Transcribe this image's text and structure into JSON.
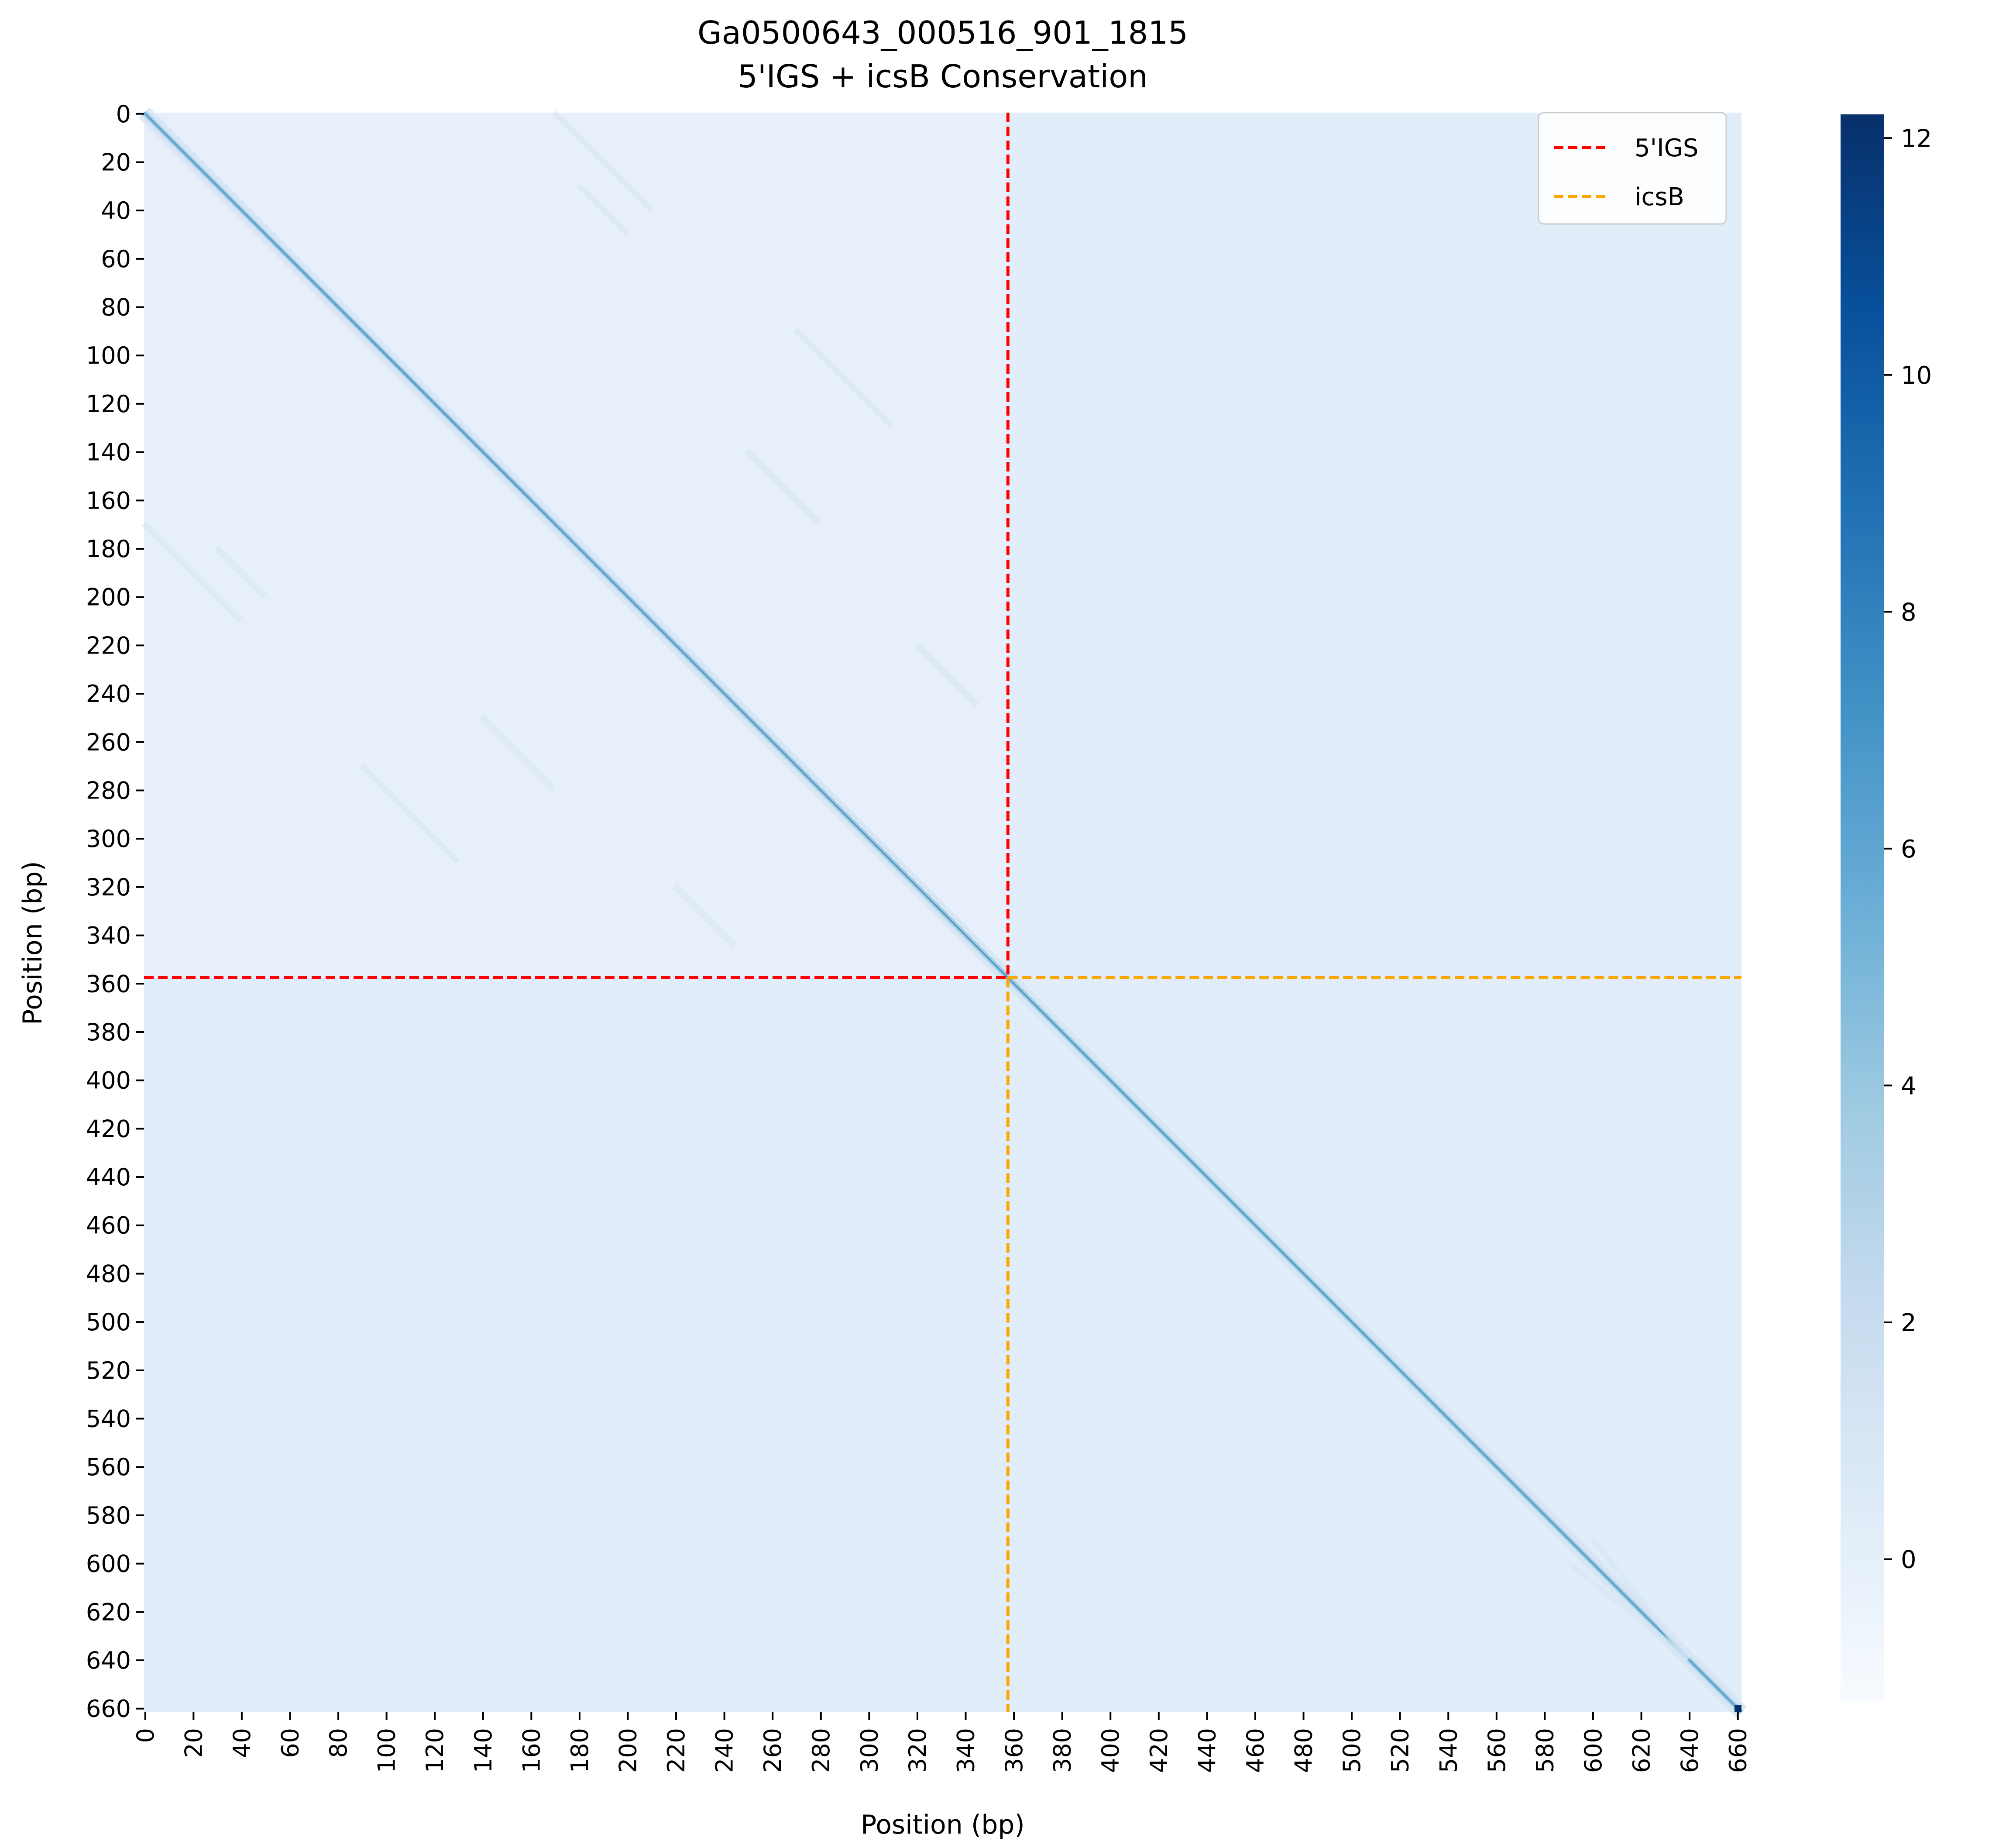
{
  "chart_data": {
    "type": "heatmap",
    "title": "Ga0500643_000516_901_1815\n5'IGS + icsB Conservation",
    "title_lines": [
      "Ga0500643_000516_901_1815",
      "5'IGS + icsB Conservation"
    ],
    "xlabel": "Position (bp)",
    "ylabel": "Position (bp)",
    "n_positions": 662,
    "x_range": [
      0,
      662
    ],
    "y_range": [
      0,
      662
    ],
    "y_inverted": true,
    "ticks": [
      0,
      20,
      40,
      60,
      80,
      100,
      120,
      140,
      160,
      180,
      200,
      220,
      240,
      260,
      280,
      300,
      320,
      340,
      360,
      380,
      400,
      420,
      440,
      460,
      480,
      500,
      520,
      540,
      560,
      580,
      600,
      620,
      640,
      660
    ],
    "boundary_position": 358,
    "regions": [
      {
        "name": "5'IGS",
        "start": 0,
        "end": 358,
        "color": "#ff0000"
      },
      {
        "name": "icsB",
        "start": 358,
        "end": 662,
        "color": "#ffa500"
      }
    ],
    "colormap": "Blues",
    "colormap_stops": [
      "#f7fbff",
      "#deebf7",
      "#c6dbef",
      "#9ecae1",
      "#6baed6",
      "#4292c6",
      "#2171b5",
      "#08519c",
      "#08306b"
    ],
    "color_range": [
      -1.2,
      12.2
    ],
    "colorbar_ticks": [
      0,
      2,
      4,
      6,
      8,
      10,
      12
    ],
    "background_values": {
      "igs_igs": -0.1,
      "igs_icsb": 0.3,
      "icsb_icsb": 0.3
    },
    "diagonal_peak": 12.2,
    "grid": false,
    "legend_position": "upper-right",
    "legend": [
      {
        "label": "5'IGS",
        "color": "#ff0000",
        "style": "dashed"
      },
      {
        "label": "icsB",
        "color": "#ffa500",
        "style": "dashed"
      }
    ]
  }
}
